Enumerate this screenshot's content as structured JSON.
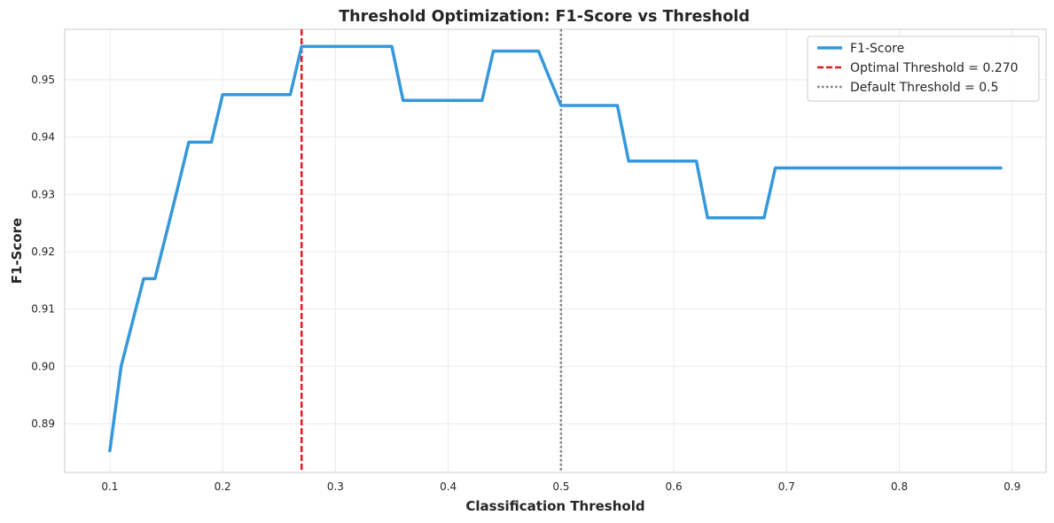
{
  "chart_data": {
    "type": "line",
    "title": "Threshold Optimization: F1-Score vs Threshold",
    "xlabel": "Classification Threshold",
    "ylabel": "F1-Score",
    "xlim": [
      0.06,
      0.93
    ],
    "ylim": [
      0.8815,
      0.9588
    ],
    "xticks": [
      0.1,
      0.2,
      0.3,
      0.4,
      0.5,
      0.6,
      0.7,
      0.8,
      0.9
    ],
    "xtick_labels": [
      "0.1",
      "0.2",
      "0.3",
      "0.4",
      "0.5",
      "0.6",
      "0.7",
      "0.8",
      "0.9"
    ],
    "yticks": [
      0.89,
      0.9,
      0.91,
      0.92,
      0.93,
      0.94,
      0.95
    ],
    "ytick_labels": [
      "0.89",
      "0.90",
      "0.91",
      "0.92",
      "0.93",
      "0.94",
      "0.95"
    ],
    "grid": true,
    "legend_position": "top-right",
    "series": [
      {
        "name": "F1-Score",
        "color": "#3498db",
        "style": "solid",
        "x": [
          0.1,
          0.11,
          0.12,
          0.13,
          0.14,
          0.15,
          0.16,
          0.17,
          0.18,
          0.19,
          0.2,
          0.21,
          0.22,
          0.23,
          0.24,
          0.25,
          0.26,
          0.27,
          0.28,
          0.29,
          0.3,
          0.31,
          0.32,
          0.33,
          0.34,
          0.35,
          0.36,
          0.37,
          0.38,
          0.39,
          0.4,
          0.41,
          0.42,
          0.43,
          0.44,
          0.45,
          0.46,
          0.47,
          0.48,
          0.49,
          0.5,
          0.51,
          0.52,
          0.53,
          0.54,
          0.55,
          0.56,
          0.57,
          0.58,
          0.59,
          0.6,
          0.61,
          0.62,
          0.63,
          0.64,
          0.65,
          0.66,
          0.67,
          0.68,
          0.69,
          0.7,
          0.71,
          0.72,
          0.73,
          0.74,
          0.75,
          0.76,
          0.77,
          0.78,
          0.79,
          0.8,
          0.81,
          0.82,
          0.83,
          0.84,
          0.85,
          0.86,
          0.87,
          0.88,
          0.89
        ],
        "y": [
          0.8853,
          0.9,
          0.9077,
          0.9153,
          0.9153,
          0.9231,
          0.931,
          0.9391,
          0.9391,
          0.9391,
          0.9474,
          0.9474,
          0.9474,
          0.9474,
          0.9474,
          0.9474,
          0.9474,
          0.9558,
          0.9558,
          0.9558,
          0.9558,
          0.9558,
          0.9558,
          0.9558,
          0.9558,
          0.9558,
          0.9464,
          0.9464,
          0.9464,
          0.9464,
          0.9464,
          0.9464,
          0.9464,
          0.9464,
          0.955,
          0.955,
          0.955,
          0.955,
          0.955,
          0.9502,
          0.9455,
          0.9455,
          0.9455,
          0.9455,
          0.9455,
          0.9455,
          0.9358,
          0.9358,
          0.9358,
          0.9358,
          0.9358,
          0.9358,
          0.9358,
          0.9259,
          0.9259,
          0.9259,
          0.9259,
          0.9259,
          0.9259,
          0.9346,
          0.9346,
          0.9346,
          0.9346,
          0.9346,
          0.9346,
          0.9346,
          0.9346,
          0.9346,
          0.9346,
          0.9346,
          0.9346,
          0.9346,
          0.9346,
          0.9346,
          0.9346,
          0.9346,
          0.9346,
          0.9346,
          0.9346,
          0.9346
        ]
      }
    ],
    "reference_lines": [
      {
        "name": "Optimal Threshold = 0.270",
        "x": 0.27,
        "color": "#e41a1c",
        "style": "dashed"
      },
      {
        "name": "Default Threshold = 0.5",
        "x": 0.5,
        "color": "#808080",
        "style": "dotted"
      }
    ]
  }
}
